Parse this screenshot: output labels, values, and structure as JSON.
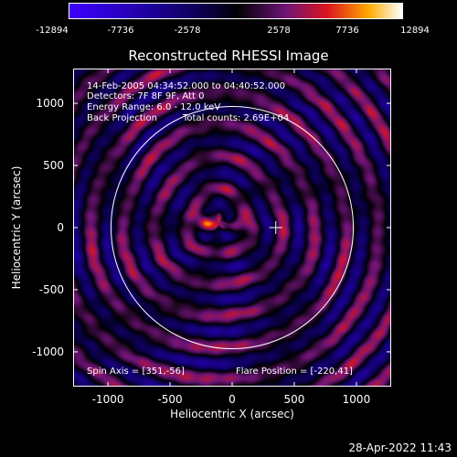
{
  "colorbar": {
    "ticks": [
      "-12894",
      "-7736",
      "-2578",
      "2578",
      "7736",
      "12894"
    ]
  },
  "chart_data": {
    "type": "heatmap",
    "title": "Reconstructed RHESSI Image",
    "xlabel": "Heliocentric X (arcsec)",
    "ylabel": "Heliocentric Y (arcsec)",
    "xlim": [
      -1280,
      1280
    ],
    "ylim": [
      -1280,
      1280
    ],
    "x_ticks": [
      -1000,
      -500,
      0,
      500,
      1000
    ],
    "y_ticks": [
      -1000,
      -500,
      0,
      500,
      1000
    ],
    "colorbar_range": [
      -12894,
      12894
    ],
    "sources": [
      {
        "x": -215,
        "y": 45,
        "intensity": 12894
      },
      {
        "x": 30,
        "y": 40,
        "intensity": 7736
      }
    ],
    "solar_limb_radius": 975,
    "flare_position": [
      -220,
      41
    ],
    "annotations": {
      "time_range": "14-Feb-2005 04:34:52.000 to 04:40:52.000",
      "detectors": "Detectors: 7F 8F 9F, Att 0",
      "energy": "Energy Range: 6.0 - 12.0 keV",
      "method": "Back Projection",
      "counts": "Total counts: 2.69E+04",
      "spin_axis": "Spin Axis = [351,-56]",
      "flare": "Flare Position = [-220,41]"
    }
  },
  "timestamp": "28-Apr-2022 11:43"
}
